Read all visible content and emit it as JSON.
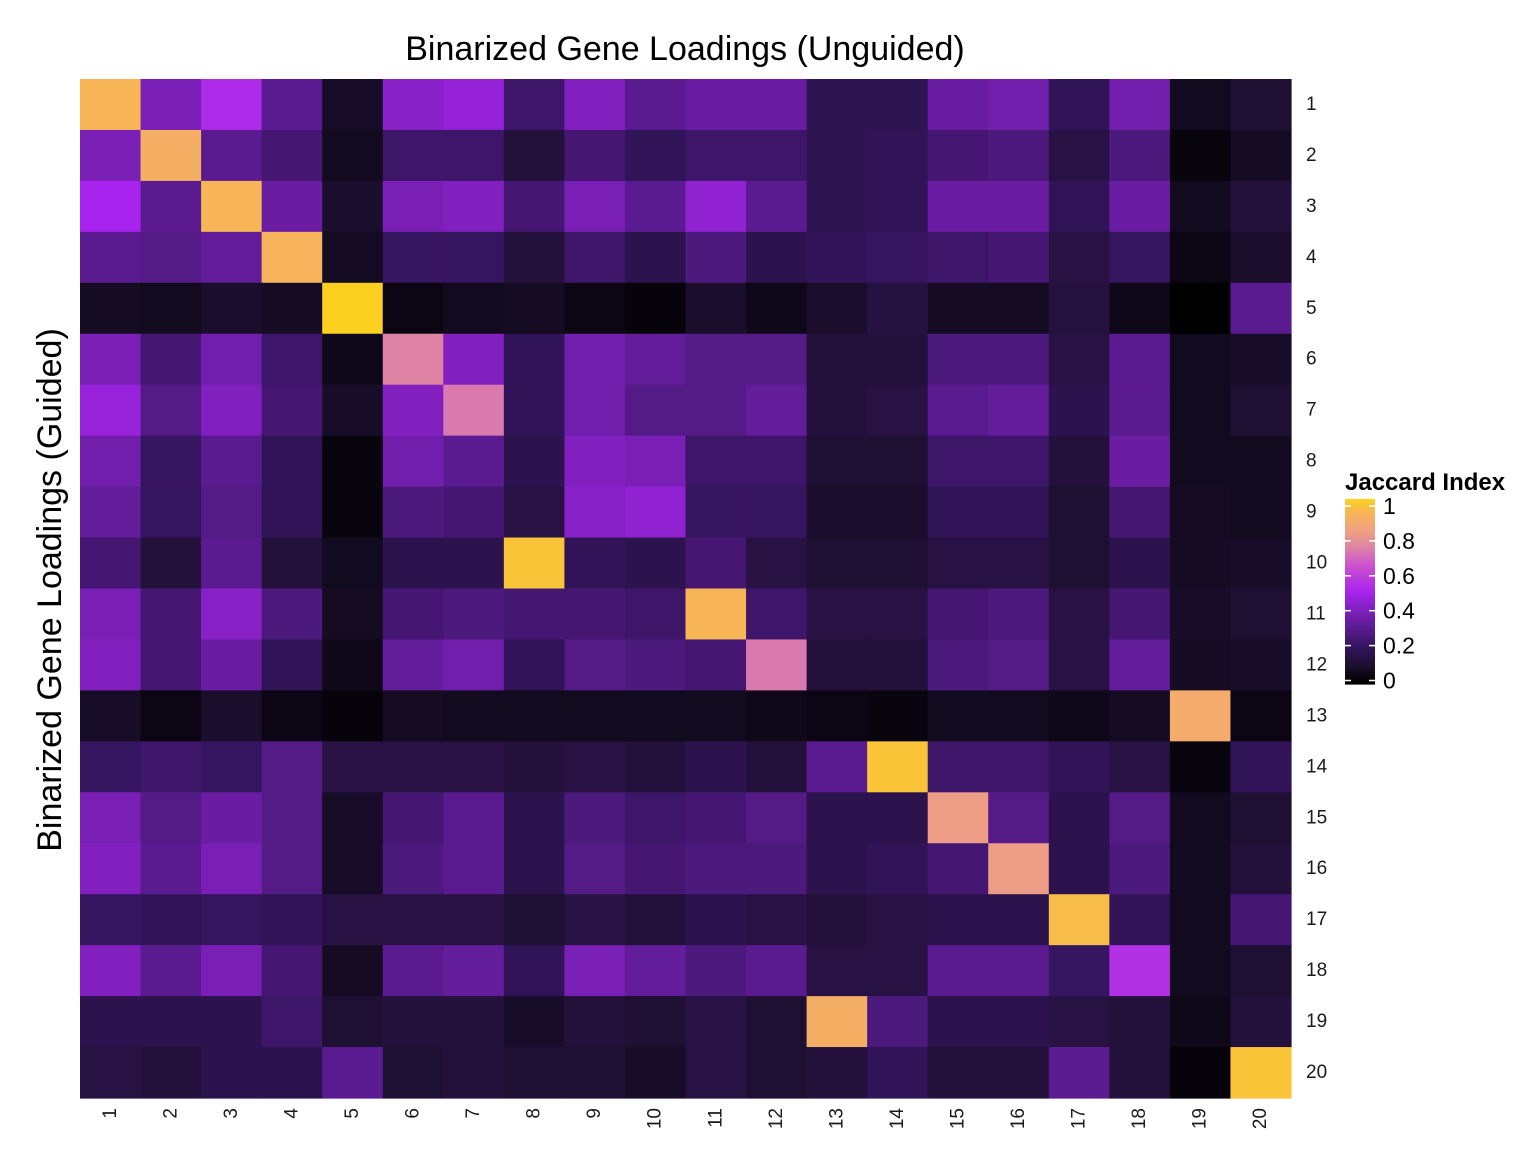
{
  "chart_data": {
    "type": "heatmap",
    "title": "Binarized Gene Loadings (Unguided)",
    "xlabel": "",
    "ylabel": "Binarized Gene Loadings (Guided)",
    "x_categories": [
      "1",
      "2",
      "3",
      "4",
      "5",
      "6",
      "7",
      "8",
      "9",
      "10",
      "11",
      "12",
      "13",
      "14",
      "15",
      "16",
      "17",
      "18",
      "19",
      "20"
    ],
    "y_categories": [
      "1",
      "2",
      "3",
      "4",
      "5",
      "6",
      "7",
      "8",
      "9",
      "10",
      "11",
      "12",
      "13",
      "14",
      "15",
      "16",
      "17",
      "18",
      "19",
      "20"
    ],
    "values": [
      [
        0.93,
        0.38,
        0.52,
        0.3,
        0.08,
        0.42,
        0.45,
        0.22,
        0.4,
        0.3,
        0.34,
        0.34,
        0.17,
        0.17,
        0.34,
        0.36,
        0.18,
        0.36,
        0.06,
        0.1
      ],
      [
        0.38,
        0.9,
        0.3,
        0.24,
        0.06,
        0.22,
        0.22,
        0.12,
        0.24,
        0.18,
        0.22,
        0.22,
        0.17,
        0.18,
        0.24,
        0.26,
        0.14,
        0.26,
        0.03,
        0.07
      ],
      [
        0.5,
        0.3,
        0.93,
        0.34,
        0.09,
        0.38,
        0.4,
        0.24,
        0.38,
        0.3,
        0.44,
        0.3,
        0.17,
        0.18,
        0.34,
        0.34,
        0.18,
        0.34,
        0.06,
        0.12
      ],
      [
        0.3,
        0.28,
        0.32,
        0.92,
        0.07,
        0.2,
        0.2,
        0.12,
        0.22,
        0.16,
        0.26,
        0.16,
        0.18,
        0.2,
        0.22,
        0.24,
        0.14,
        0.2,
        0.04,
        0.09
      ],
      [
        0.07,
        0.06,
        0.09,
        0.07,
        1.0,
        0.04,
        0.06,
        0.07,
        0.04,
        0.02,
        0.09,
        0.05,
        0.09,
        0.13,
        0.07,
        0.07,
        0.13,
        0.05,
        0.0,
        0.3
      ],
      [
        0.38,
        0.24,
        0.36,
        0.22,
        0.05,
        0.74,
        0.4,
        0.18,
        0.36,
        0.32,
        0.28,
        0.28,
        0.12,
        0.12,
        0.26,
        0.26,
        0.14,
        0.3,
        0.06,
        0.08
      ],
      [
        0.46,
        0.28,
        0.4,
        0.24,
        0.08,
        0.4,
        0.72,
        0.18,
        0.36,
        0.28,
        0.28,
        0.32,
        0.12,
        0.14,
        0.3,
        0.32,
        0.16,
        0.3,
        0.06,
        0.1
      ],
      [
        0.36,
        0.2,
        0.3,
        0.18,
        0.03,
        0.36,
        0.3,
        0.16,
        0.4,
        0.38,
        0.22,
        0.22,
        0.1,
        0.1,
        0.22,
        0.22,
        0.12,
        0.34,
        0.06,
        0.06
      ],
      [
        0.32,
        0.2,
        0.28,
        0.18,
        0.03,
        0.26,
        0.24,
        0.14,
        0.42,
        0.44,
        0.2,
        0.2,
        0.09,
        0.09,
        0.18,
        0.18,
        0.1,
        0.24,
        0.07,
        0.06
      ],
      [
        0.24,
        0.12,
        0.3,
        0.12,
        0.06,
        0.16,
        0.16,
        0.97,
        0.18,
        0.16,
        0.24,
        0.14,
        0.1,
        0.1,
        0.14,
        0.14,
        0.1,
        0.16,
        0.07,
        0.08
      ],
      [
        0.38,
        0.24,
        0.42,
        0.26,
        0.07,
        0.24,
        0.26,
        0.24,
        0.24,
        0.22,
        0.93,
        0.22,
        0.14,
        0.14,
        0.24,
        0.26,
        0.14,
        0.24,
        0.08,
        0.1
      ],
      [
        0.4,
        0.24,
        0.34,
        0.18,
        0.05,
        0.32,
        0.36,
        0.18,
        0.28,
        0.26,
        0.24,
        0.72,
        0.12,
        0.12,
        0.26,
        0.28,
        0.14,
        0.32,
        0.07,
        0.08
      ],
      [
        0.08,
        0.04,
        0.09,
        0.04,
        0.02,
        0.07,
        0.06,
        0.06,
        0.06,
        0.06,
        0.06,
        0.05,
        0.04,
        0.03,
        0.06,
        0.06,
        0.05,
        0.07,
        0.88,
        0.04
      ],
      [
        0.2,
        0.22,
        0.2,
        0.28,
        0.14,
        0.14,
        0.14,
        0.12,
        0.14,
        0.12,
        0.16,
        0.12,
        0.3,
        0.97,
        0.22,
        0.22,
        0.18,
        0.14,
        0.03,
        0.18
      ],
      [
        0.38,
        0.28,
        0.34,
        0.28,
        0.08,
        0.24,
        0.3,
        0.16,
        0.26,
        0.22,
        0.24,
        0.28,
        0.16,
        0.16,
        0.82,
        0.28,
        0.16,
        0.28,
        0.06,
        0.1
      ],
      [
        0.4,
        0.3,
        0.38,
        0.28,
        0.08,
        0.26,
        0.3,
        0.16,
        0.28,
        0.24,
        0.26,
        0.26,
        0.16,
        0.18,
        0.24,
        0.82,
        0.16,
        0.26,
        0.06,
        0.12
      ],
      [
        0.2,
        0.18,
        0.2,
        0.18,
        0.14,
        0.14,
        0.14,
        0.1,
        0.14,
        0.12,
        0.16,
        0.14,
        0.12,
        0.14,
        0.16,
        0.16,
        0.95,
        0.18,
        0.06,
        0.24
      ],
      [
        0.4,
        0.3,
        0.38,
        0.24,
        0.07,
        0.3,
        0.32,
        0.18,
        0.38,
        0.32,
        0.26,
        0.3,
        0.14,
        0.14,
        0.3,
        0.3,
        0.2,
        0.54,
        0.06,
        0.1
      ],
      [
        0.16,
        0.16,
        0.16,
        0.22,
        0.1,
        0.12,
        0.12,
        0.08,
        0.12,
        0.1,
        0.14,
        0.1,
        0.9,
        0.26,
        0.16,
        0.16,
        0.14,
        0.12,
        0.05,
        0.12
      ],
      [
        0.14,
        0.12,
        0.16,
        0.16,
        0.3,
        0.1,
        0.12,
        0.1,
        0.1,
        0.08,
        0.14,
        0.1,
        0.12,
        0.18,
        0.12,
        0.12,
        0.3,
        0.12,
        0.02,
        0.97
      ]
    ],
    "legend": {
      "title": "Jaccard Index",
      "ticks": [
        "1",
        "0.8",
        "0.6",
        "0.4",
        "0.2",
        "0"
      ],
      "tick_values": [
        1,
        0.8,
        0.6,
        0.4,
        0.2,
        0
      ],
      "placement": "right"
    },
    "color_scale": {
      "stops": [
        {
          "v": 0.0,
          "color": "#000000"
        },
        {
          "v": 0.1,
          "color": "#1e1032"
        },
        {
          "v": 0.2,
          "color": "#361560"
        },
        {
          "v": 0.35,
          "color": "#6e1ea8"
        },
        {
          "v": 0.5,
          "color": "#a824ee"
        },
        {
          "v": 0.65,
          "color": "#cc55cc"
        },
        {
          "v": 0.75,
          "color": "#e088a0"
        },
        {
          "v": 0.85,
          "color": "#f2a67a"
        },
        {
          "v": 0.93,
          "color": "#f7b558"
        },
        {
          "v": 1.0,
          "color": "#fbd020"
        }
      ]
    },
    "grid": false
  }
}
